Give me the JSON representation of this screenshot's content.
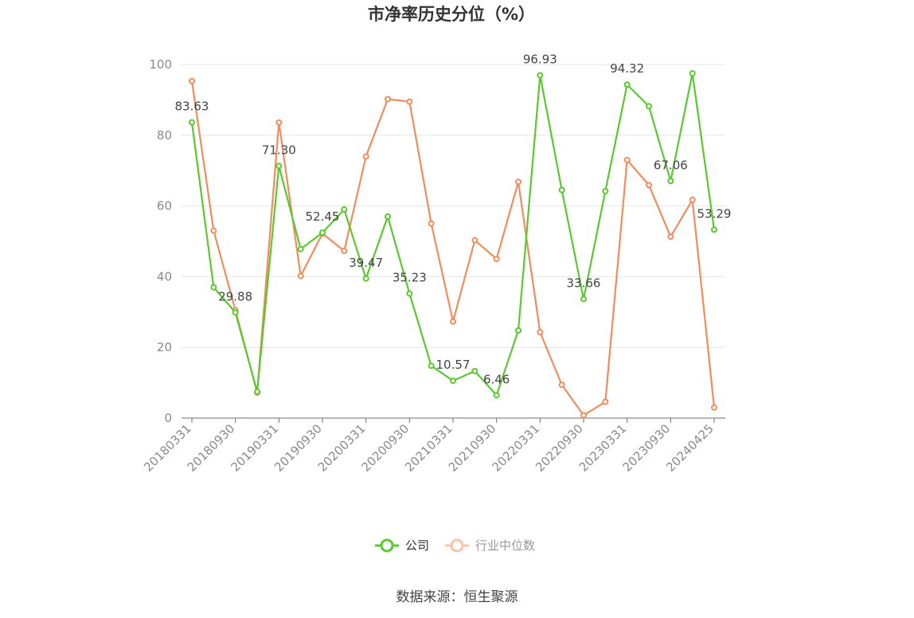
{
  "chart_data": {
    "type": "line",
    "title": "市净率历史分位（%）",
    "xlabel": "",
    "ylabel": "",
    "ylim": [
      0,
      100
    ],
    "yticks": [
      0,
      20,
      40,
      60,
      80,
      100
    ],
    "x": [
      "20180331",
      "20180630",
      "20180930",
      "20181231",
      "20190331",
      "20190630",
      "20190930",
      "20191231",
      "20200331",
      "20200630",
      "20200930",
      "20201231",
      "20210331",
      "20210630",
      "20210930",
      "20211231",
      "20220331",
      "20220630",
      "20220930",
      "20221231",
      "20230331",
      "20230630",
      "20230930",
      "20231231",
      "20240425"
    ],
    "xtick_labels": [
      "20180331",
      "20180930",
      "20190331",
      "20190930",
      "20200331",
      "20200930",
      "20210331",
      "20210930",
      "20220331",
      "20220930",
      "20230331",
      "20230930",
      "20240425"
    ],
    "xtick_indices": [
      0,
      2,
      4,
      6,
      8,
      10,
      12,
      14,
      16,
      18,
      20,
      22,
      24
    ],
    "series": [
      {
        "name": "公司",
        "color": "#5ac82e",
        "values": [
          83.63,
          37.0,
          29.88,
          7.5,
          71.3,
          47.8,
          52.45,
          59.0,
          39.47,
          57.0,
          35.23,
          14.8,
          10.57,
          13.3,
          6.46,
          24.8,
          96.93,
          64.5,
          33.66,
          64.2,
          94.32,
          88.2,
          67.06,
          97.5,
          53.29
        ],
        "labels": {
          "0": "83.63",
          "2": "29.88",
          "4": "71.30",
          "6": "52.45",
          "8": "39.47",
          "10": "35.23",
          "12": "10.57",
          "14": "6.46",
          "16": "96.93",
          "18": "33.66",
          "20": "94.32",
          "22": "67.06",
          "24": "53.29"
        }
      },
      {
        "name": "行业中位数",
        "color": "#f28c5c",
        "values": [
          95.3,
          53.0,
          30.5,
          7.2,
          83.6,
          40.2,
          52.2,
          47.3,
          74.0,
          90.2,
          89.5,
          55.0,
          27.3,
          50.3,
          45.0,
          66.8,
          24.3,
          9.4,
          0.8,
          4.6,
          73.0,
          65.9,
          51.3,
          61.7,
          3.0
        ]
      }
    ],
    "grid": true,
    "legend_position": "bottom-center"
  },
  "legend": {
    "company": "公司",
    "industry": "行业中位数"
  },
  "source_text": "数据来源：恒生聚源"
}
